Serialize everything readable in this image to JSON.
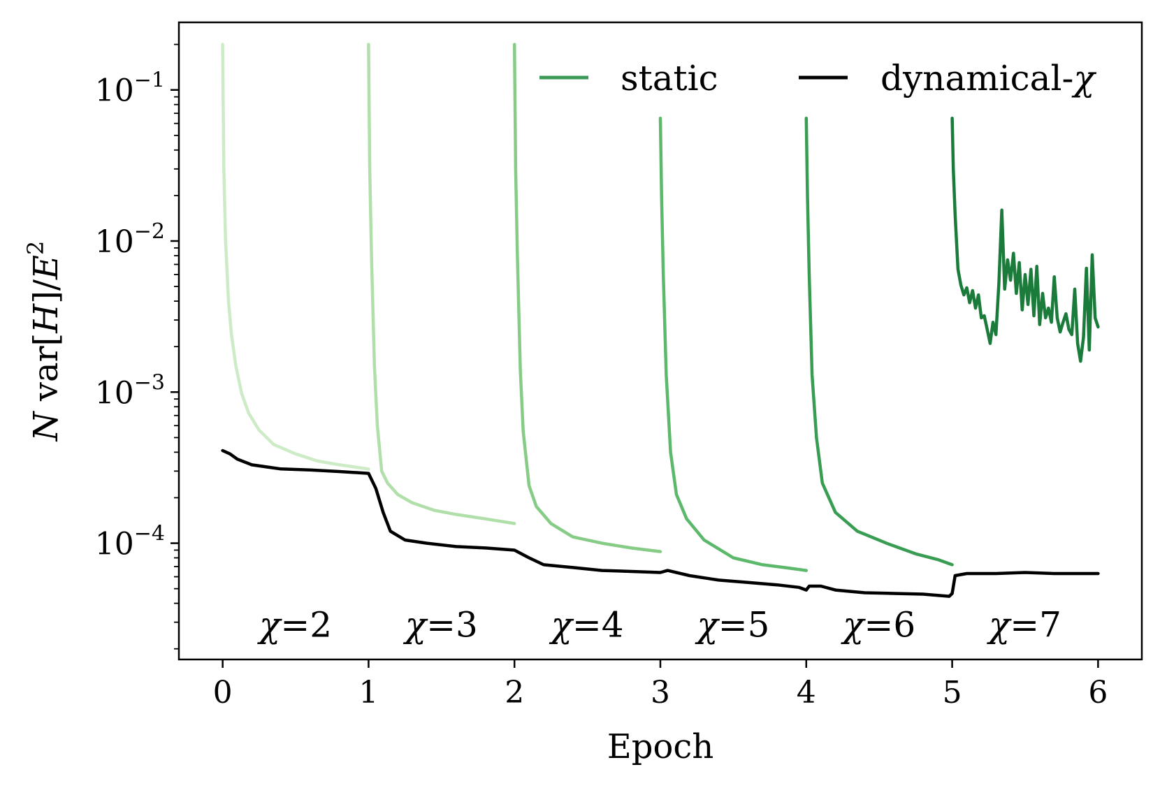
{
  "chart_data": {
    "type": "line",
    "xlabel": "Epoch",
    "ylabel_parts": {
      "n": "N",
      "var": " var[",
      "h": "H",
      "close": "]/",
      "e": "E",
      "sup": "2"
    },
    "xlim": [
      -0.3,
      6.3
    ],
    "ylim": [
      1.7e-05,
      0.28
    ],
    "yscale": "log",
    "x_ticks": [
      0,
      1,
      2,
      3,
      4,
      5,
      6
    ],
    "x_tick_labels": [
      "0",
      "1",
      "2",
      "3",
      "4",
      "5",
      "6"
    ],
    "y_ticks": [
      {
        "value": 0.1,
        "base": "10",
        "exp": "−1"
      },
      {
        "value": 0.01,
        "base": "10",
        "exp": "−2"
      },
      {
        "value": 0.001,
        "base": "10",
        "exp": "−3"
      },
      {
        "value": 0.0001,
        "base": "10",
        "exp": "−4"
      }
    ],
    "legend": {
      "placement": "top-right",
      "entries": [
        {
          "label": "static",
          "color": "#3a9a56"
        },
        {
          "label": "dynamical-",
          "symbol": "χ",
          "color": "#000000"
        }
      ]
    },
    "annotations": [
      {
        "symbol": "χ",
        "text": "=2",
        "x": 0.5
      },
      {
        "symbol": "χ",
        "text": "=3",
        "x": 1.5
      },
      {
        "symbol": "χ",
        "text": "=4",
        "x": 2.5
      },
      {
        "symbol": "χ",
        "text": "=5",
        "x": 3.5
      },
      {
        "symbol": "χ",
        "text": "=6",
        "x": 4.5
      },
      {
        "symbol": "χ",
        "text": "=7",
        "x": 5.5
      }
    ],
    "annotation_y": 2.4e-05,
    "series": [
      {
        "color": "#cdebc6",
        "points": [
          [
            0.0,
            0.2
          ],
          [
            0.008,
            0.03
          ],
          [
            0.02,
            0.01
          ],
          [
            0.04,
            0.004
          ],
          [
            0.06,
            0.0024
          ],
          [
            0.09,
            0.0015
          ],
          [
            0.13,
            0.00098
          ],
          [
            0.18,
            0.00072
          ],
          [
            0.25,
            0.00056
          ],
          [
            0.35,
            0.00045
          ],
          [
            0.5,
            0.00039
          ],
          [
            0.65,
            0.00035
          ],
          [
            0.8,
            0.00033
          ],
          [
            1.0,
            0.00031
          ]
        ]
      },
      {
        "color": "#b0dfaa",
        "points": [
          [
            1.0,
            0.2
          ],
          [
            1.008,
            0.03
          ],
          [
            1.02,
            0.008
          ],
          [
            1.04,
            0.0015
          ],
          [
            1.06,
            0.0006
          ],
          [
            1.09,
            0.0003
          ],
          [
            1.13,
            0.00025
          ],
          [
            1.2,
            0.00021
          ],
          [
            1.3,
            0.000185
          ],
          [
            1.45,
            0.000165
          ],
          [
            1.6,
            0.000155
          ],
          [
            1.8,
            0.000145
          ],
          [
            2.0,
            0.000135
          ]
        ]
      },
      {
        "color": "#86cc87",
        "points": [
          [
            2.0,
            0.2
          ],
          [
            2.008,
            0.03
          ],
          [
            2.02,
            0.008
          ],
          [
            2.04,
            0.0014
          ],
          [
            2.06,
            0.00055
          ],
          [
            2.1,
            0.00024
          ],
          [
            2.15,
            0.000175
          ],
          [
            2.25,
            0.000135
          ],
          [
            2.4,
            0.00011
          ],
          [
            2.6,
            0.0001
          ],
          [
            2.8,
            9.3e-05
          ],
          [
            3.0,
            8.8e-05
          ]
        ]
      },
      {
        "color": "#5cb86a",
        "points": [
          [
            3.0,
            0.065
          ],
          [
            3.008,
            0.02
          ],
          [
            3.02,
            0.006
          ],
          [
            3.04,
            0.0013
          ],
          [
            3.07,
            0.0004
          ],
          [
            3.11,
            0.00021
          ],
          [
            3.18,
            0.000145
          ],
          [
            3.3,
            0.000105
          ],
          [
            3.5,
            8e-05
          ],
          [
            3.7,
            7.2e-05
          ],
          [
            3.85,
            6.9e-05
          ],
          [
            4.0,
            6.6e-05
          ]
        ]
      },
      {
        "color": "#389d52",
        "points": [
          [
            4.0,
            0.065
          ],
          [
            4.008,
            0.02
          ],
          [
            4.02,
            0.006
          ],
          [
            4.04,
            0.0013
          ],
          [
            4.07,
            0.0005
          ],
          [
            4.11,
            0.00025
          ],
          [
            4.2,
            0.00016
          ],
          [
            4.35,
            0.00012
          ],
          [
            4.55,
            0.0001
          ],
          [
            4.75,
            8.5e-05
          ],
          [
            4.9,
            7.8e-05
          ],
          [
            5.0,
            7.2e-05
          ]
        ]
      },
      {
        "color": "#1b7b3a",
        "points": [
          [
            5.0,
            0.065
          ],
          [
            5.008,
            0.03
          ],
          [
            5.02,
            0.015
          ],
          [
            5.04,
            0.0065
          ],
          [
            5.06,
            0.0051
          ],
          [
            5.08,
            0.0044
          ],
          [
            5.1,
            0.0049
          ],
          [
            5.12,
            0.0039
          ],
          [
            5.14,
            0.0047
          ],
          [
            5.16,
            0.0036
          ],
          [
            5.18,
            0.0044
          ],
          [
            5.2,
            0.0031
          ],
          [
            5.22,
            0.0032
          ],
          [
            5.24,
            0.0026
          ],
          [
            5.26,
            0.0021
          ],
          [
            5.28,
            0.0029
          ],
          [
            5.3,
            0.0024
          ],
          [
            5.32,
            0.0052
          ],
          [
            5.34,
            0.016
          ],
          [
            5.36,
            0.0048
          ],
          [
            5.38,
            0.0075
          ],
          [
            5.4,
            0.0055
          ],
          [
            5.42,
            0.0083
          ],
          [
            5.44,
            0.0045
          ],
          [
            5.46,
            0.0072
          ],
          [
            5.48,
            0.0035
          ],
          [
            5.5,
            0.006
          ],
          [
            5.52,
            0.0038
          ],
          [
            5.54,
            0.0065
          ],
          [
            5.56,
            0.0032
          ],
          [
            5.58,
            0.0068
          ],
          [
            5.6,
            0.0028
          ],
          [
            5.62,
            0.0045
          ],
          [
            5.64,
            0.0031
          ],
          [
            5.66,
            0.0036
          ],
          [
            5.68,
            0.0029
          ],
          [
            5.7,
            0.0058
          ],
          [
            5.72,
            0.0031
          ],
          [
            5.74,
            0.0025
          ],
          [
            5.76,
            0.0029
          ],
          [
            5.78,
            0.0033
          ],
          [
            5.8,
            0.0026
          ],
          [
            5.82,
            0.0024
          ],
          [
            5.84,
            0.0048
          ],
          [
            5.86,
            0.0021
          ],
          [
            5.88,
            0.0016
          ],
          [
            5.9,
            0.0023
          ],
          [
            5.92,
            0.0066
          ],
          [
            5.94,
            0.0019
          ],
          [
            5.96,
            0.0081
          ],
          [
            5.98,
            0.0031
          ],
          [
            6.0,
            0.0027
          ]
        ]
      },
      {
        "color": "#000000",
        "points": [
          [
            0.0,
            0.00041
          ],
          [
            0.05,
            0.00039
          ],
          [
            0.1,
            0.00036
          ],
          [
            0.2,
            0.00033
          ],
          [
            0.4,
            0.00031
          ],
          [
            0.6,
            0.000305
          ],
          [
            0.8,
            0.000298
          ],
          [
            1.0,
            0.00029
          ],
          [
            1.05,
            0.00023
          ],
          [
            1.1,
            0.00016
          ],
          [
            1.15,
            0.00012
          ],
          [
            1.25,
            0.000105
          ],
          [
            1.4,
            0.0001
          ],
          [
            1.6,
            9.5e-05
          ],
          [
            1.8,
            9.3e-05
          ],
          [
            2.0,
            9e-05
          ],
          [
            2.1,
            8e-05
          ],
          [
            2.2,
            7.2e-05
          ],
          [
            2.4,
            6.9e-05
          ],
          [
            2.6,
            6.6e-05
          ],
          [
            2.8,
            6.5e-05
          ],
          [
            3.0,
            6.4e-05
          ],
          [
            3.05,
            6.6e-05
          ],
          [
            3.2,
            6.1e-05
          ],
          [
            3.4,
            5.7e-05
          ],
          [
            3.6,
            5.5e-05
          ],
          [
            3.8,
            5.3e-05
          ],
          [
            3.95,
            5.1e-05
          ],
          [
            4.0,
            4.9e-05
          ],
          [
            4.02,
            5.2e-05
          ],
          [
            4.1,
            5.2e-05
          ],
          [
            4.2,
            4.9e-05
          ],
          [
            4.4,
            4.7e-05
          ],
          [
            4.6,
            4.65e-05
          ],
          [
            4.8,
            4.6e-05
          ],
          [
            4.98,
            4.45e-05
          ],
          [
            5.0,
            4.65e-05
          ],
          [
            5.02,
            6.1e-05
          ],
          [
            5.1,
            6.3e-05
          ],
          [
            5.3,
            6.3e-05
          ],
          [
            5.5,
            6.4e-05
          ],
          [
            5.7,
            6.3e-05
          ],
          [
            5.9,
            6.3e-05
          ],
          [
            6.0,
            6.3e-05
          ]
        ]
      }
    ]
  }
}
